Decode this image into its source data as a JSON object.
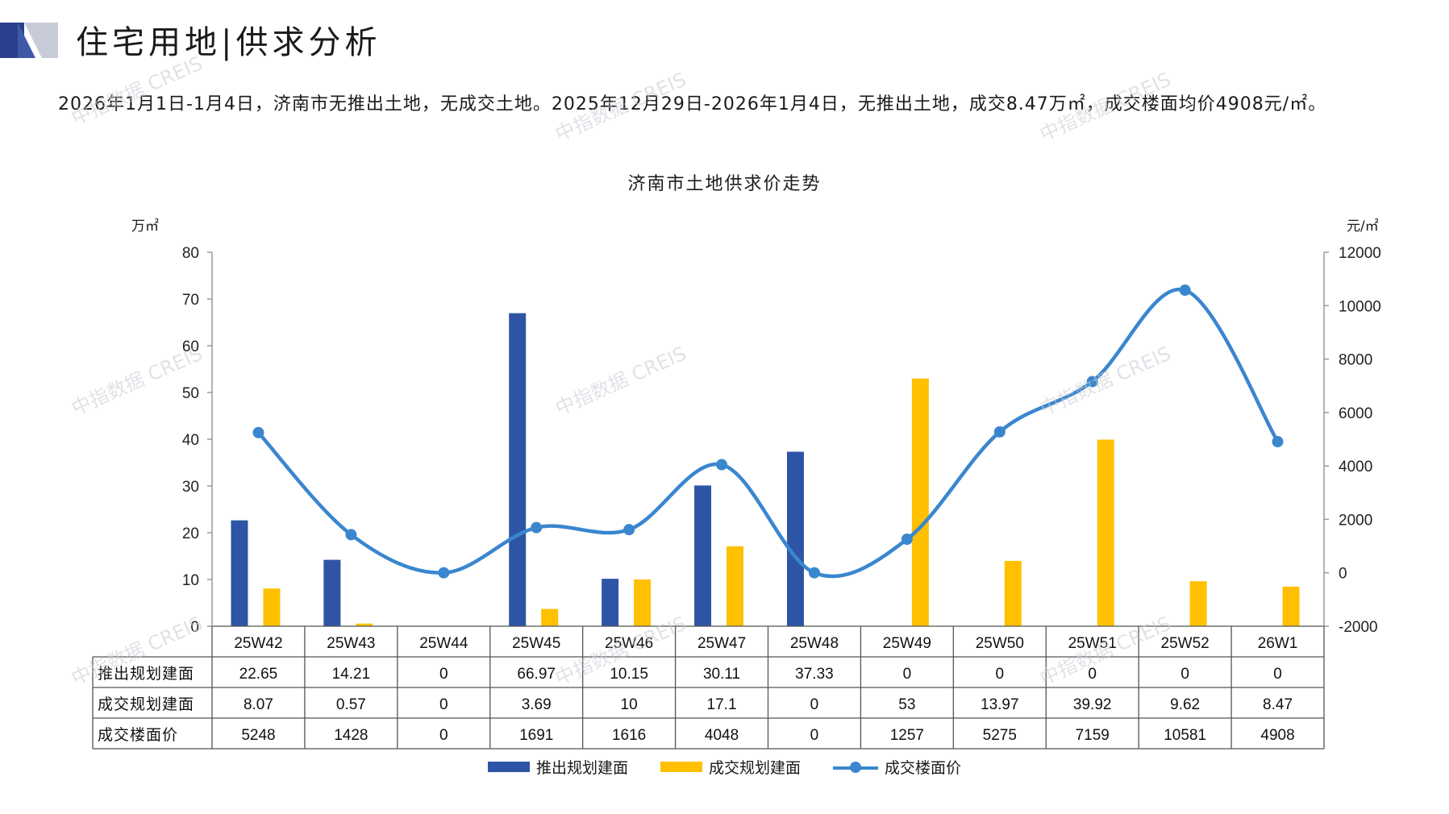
{
  "header": {
    "title": "住宅用地|供求分析",
    "summary": "2026年1月1日-1月4日，济南市无推出土地，无成交土地。2025年12月29日-2026年1月4日，无推出土地，成交8.47万㎡，成交楼面均价4908元/㎡。"
  },
  "watermark": "中指数据 CREIS",
  "colors": {
    "supply": "#2e55a5",
    "deal": "#ffc000",
    "price": "#3a86cf",
    "accent_dark": "#2b3f8c",
    "accent_light": "#c7ccd8"
  },
  "chart_data": {
    "type": "bar",
    "title": "济南市土地供求价走势",
    "y_left_unit": "万㎡",
    "y_right_unit": "元/㎡",
    "ylim_left": [
      0,
      80
    ],
    "ylim_right": [
      -2000,
      12000
    ],
    "y_left_ticks": [
      0,
      10,
      20,
      30,
      40,
      50,
      60,
      70,
      80
    ],
    "y_right_ticks": [
      -2000,
      0,
      2000,
      4000,
      6000,
      8000,
      10000,
      12000
    ],
    "categories": [
      "25W42",
      "25W43",
      "25W44",
      "25W45",
      "25W46",
      "25W47",
      "25W48",
      "25W49",
      "25W50",
      "25W51",
      "25W52",
      "26W1"
    ],
    "series": [
      {
        "name": "推出规划建面",
        "type": "bar",
        "axis": "left",
        "values": [
          22.65,
          14.21,
          0,
          66.97,
          10.15,
          30.11,
          37.33,
          0,
          0,
          0,
          0,
          0
        ],
        "labels": [
          "22.65",
          "14.21",
          "0",
          "66.97",
          "10.15",
          "30.11",
          "37.33",
          "0",
          "0",
          "0",
          "0",
          "0"
        ]
      },
      {
        "name": "成交规划建面",
        "type": "bar",
        "axis": "left",
        "values": [
          8.07,
          0.57,
          0,
          3.69,
          10,
          17.1,
          0,
          53,
          13.97,
          39.92,
          9.62,
          8.47
        ],
        "labels": [
          "8.07",
          "0.57",
          "0",
          "3.69",
          "10",
          "17.1",
          "0",
          "53",
          "13.97",
          "39.92",
          "9.62",
          "8.47"
        ]
      },
      {
        "name": "成交楼面价",
        "type": "line",
        "axis": "right",
        "values": [
          5248,
          1428,
          0,
          1691,
          1616,
          4048,
          0,
          1257,
          5275,
          7159,
          10581,
          4908
        ],
        "labels": [
          "5248",
          "1428",
          "0",
          "1691",
          "1616",
          "4048",
          "0",
          "1257",
          "5275",
          "7159",
          "10581",
          "4908"
        ]
      }
    ],
    "grid": false,
    "legend": "bottom",
    "data_table": true
  }
}
